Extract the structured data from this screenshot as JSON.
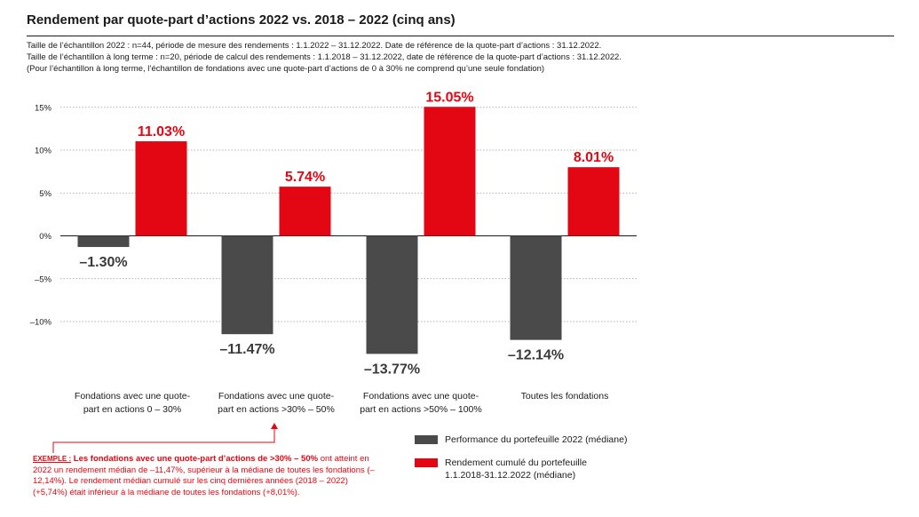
{
  "header": {
    "title": "Rendement par quote-part d’actions 2022 vs. 2018 – 2022 (cinq ans)",
    "notes": [
      "Taille de l’échantillon 2022 : n=44, période de mesure des rendements : 1.1.2022 – 31.12.2022. Date de référence de la quote-part d’actions : 31.12.2022.",
      "Taille de l’échantillon à long terme : n=20, période de calcul des rendements : 1.1.2018 – 31.12.2022, date de référence de la quote-part d’actions : 31.12.2022.",
      "(Pour l’échantillon à long terme, l’échantillon de fondations avec une quote-part d’actions de 0 à 30% ne comprend qu’une seule fondation)"
    ]
  },
  "chart_data": {
    "type": "bar",
    "categories": [
      [
        "Fondations avec une quote-",
        "part en actions 0 – 30%"
      ],
      [
        "Fondations avec une quote-",
        "part en actions >30% – 50%"
      ],
      [
        "Fondations avec une quote-",
        "part en actions >50% – 100%"
      ],
      [
        "Toutes les fondations"
      ]
    ],
    "series": [
      {
        "name": "Performance du portefeuille 2022 (médiane)",
        "values": [
          -1.3,
          -11.47,
          -13.77,
          -12.14
        ],
        "labels": [
          "–1.30%",
          "–11.47%",
          "–13.77%",
          "–12.14%"
        ],
        "color": "#4a4a4a"
      },
      {
        "name": "Rendement cumulé du portefeuille 1.1.2018-31.12.2022 (médiane)",
        "name_lines": [
          "Rendement cumulé du portefeuille",
          "1.1.2018-31.12.2022 (médiane)"
        ],
        "values": [
          11.03,
          5.74,
          15.05,
          8.01
        ],
        "labels": [
          "11.03%",
          "5.74%",
          "15.05%",
          "8.01%"
        ],
        "color": "#e30613"
      }
    ],
    "yticks": [
      15,
      10,
      5,
      0,
      -5,
      -10
    ],
    "ytick_labels": [
      "15%",
      "10%",
      "5%",
      "0%",
      "–5%",
      "–10%"
    ],
    "ylim": [
      -15,
      16
    ],
    "grid": true,
    "legend_position": "bottom-right"
  },
  "example": {
    "tag": "EXEMPLE :",
    "lead": "Les fondations avec une quote-part d’actions de >30% – 50%",
    "text": " ont atteint en 2022 un rendement médian de –11,47%, supérieur à la médiane de toutes les fondations (–12,14%). Le rendement médian cumulé sur les cinq dernières années (2018 – 2022) (+5,74%) était inférieur à la médiane de toutes les fondations (+8,01%).",
    "line_color": "#e30613"
  }
}
